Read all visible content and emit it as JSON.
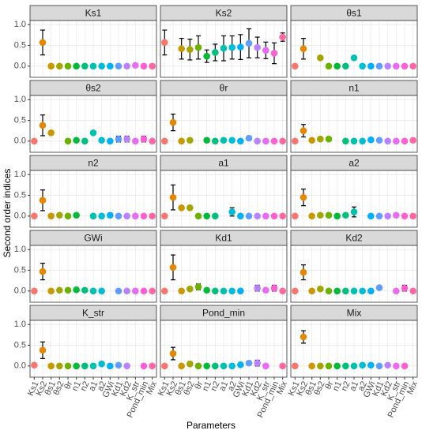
{
  "chart_data": {
    "type": "dot-errorbar",
    "xlabel": "Parameters",
    "ylabel": "Second order indices",
    "categories": [
      "Ks1",
      "Ks2",
      "θs1",
      "θs2",
      "θr",
      "n1",
      "n2",
      "a1",
      "a2",
      "GWi",
      "Kd1",
      "Kd2",
      "K_str",
      "Pond_min",
      "Mix"
    ],
    "colors": [
      "#F8766D",
      "#E58700",
      "#C99800",
      "#A3A500",
      "#6BB100",
      "#00BA38",
      "#00BF7D",
      "#00C0AF",
      "#00BCD8",
      "#00B0F6",
      "#619CFF",
      "#B983FF",
      "#E76BF3",
      "#FD61D1",
      "#FF67A4"
    ],
    "ylim": [
      -0.27,
      1.1
    ],
    "yticks": [
      {
        "value": 0,
        "label": "0.0"
      },
      {
        "value": 0.5,
        "label": "0.5"
      },
      {
        "value": 1,
        "label": "1.0"
      }
    ],
    "grid": true,
    "panels": [
      {
        "title": "Ks1",
        "values": [
          null,
          0.57,
          0,
          0,
          0,
          0,
          0,
          0,
          0,
          0,
          0,
          0,
          0.02,
          0,
          0
        ],
        "errors": [
          null,
          0.3,
          null,
          null,
          null,
          null,
          null,
          null,
          null,
          null,
          null,
          null,
          null,
          null,
          null
        ]
      },
      {
        "title": "Ks2",
        "values": [
          0.57,
          null,
          0.42,
          0.4,
          0.45,
          0.24,
          0.33,
          0.43,
          0.45,
          0.46,
          0.55,
          0.45,
          0.38,
          0.31,
          0.7
        ],
        "errors": [
          0.3,
          null,
          0.25,
          0.25,
          0.28,
          0.15,
          0.2,
          0.3,
          0.28,
          0.3,
          0.35,
          0.25,
          0.2,
          0.25,
          0.1
        ]
      },
      {
        "title": "θs1",
        "values": [
          0,
          0.42,
          null,
          0.2,
          0,
          0,
          0,
          0.2,
          0,
          0,
          0,
          0,
          0,
          0,
          0
        ],
        "errors": [
          null,
          0.25,
          null,
          null,
          null,
          null,
          null,
          null,
          null,
          null,
          null,
          null,
          null,
          null,
          null
        ]
      },
      {
        "title": "θs2",
        "values": [
          0,
          0.38,
          0.2,
          null,
          0,
          0.02,
          0,
          0.2,
          0.02,
          0,
          0.05,
          0.05,
          0,
          0.05,
          0
        ],
        "errors": [
          null,
          0.25,
          null,
          null,
          0.05,
          null,
          null,
          null,
          0.05,
          null,
          0.07,
          0.07,
          null,
          0.07,
          null
        ]
      },
      {
        "title": "θr",
        "values": [
          0,
          0.45,
          0,
          0.02,
          null,
          0.02,
          0,
          0.02,
          0.02,
          0,
          0.07,
          0,
          0,
          0,
          0
        ],
        "errors": [
          null,
          0.2,
          null,
          null,
          null,
          0.05,
          null,
          null,
          null,
          null,
          0.05,
          null,
          null,
          null,
          null
        ]
      },
      {
        "title": "n1",
        "values": [
          0,
          0.25,
          0.02,
          0.05,
          0.05,
          null,
          0,
          0,
          0,
          0.03,
          0.02,
          0,
          0,
          0,
          0.02
        ],
        "errors": [
          null,
          0.15,
          null,
          null,
          null,
          null,
          null,
          null,
          null,
          null,
          null,
          null,
          null,
          null,
          null
        ]
      },
      {
        "title": "n2",
        "values": [
          0,
          0.38,
          0,
          0.02,
          0,
          0.02,
          null,
          0,
          0,
          0.02,
          0,
          0,
          0,
          0,
          0
        ],
        "errors": [
          null,
          0.25,
          null,
          0.04,
          null,
          null,
          null,
          null,
          null,
          null,
          null,
          null,
          null,
          null,
          null
        ]
      },
      {
        "title": "a1",
        "values": [
          0,
          0.45,
          0.2,
          0.2,
          0,
          0,
          0,
          null,
          0.1,
          0,
          0,
          0,
          0,
          0,
          0
        ],
        "errors": [
          null,
          0.3,
          null,
          null,
          null,
          null,
          null,
          null,
          0.1,
          null,
          null,
          null,
          null,
          null,
          null
        ]
      },
      {
        "title": "a2",
        "values": [
          0,
          0.45,
          0,
          0.02,
          0.02,
          0,
          0.02,
          0.1,
          null,
          0,
          0,
          0,
          0.02,
          0,
          0
        ],
        "errors": [
          null,
          0.2,
          null,
          null,
          null,
          null,
          null,
          0.12,
          null,
          null,
          null,
          null,
          null,
          null,
          null
        ]
      },
      {
        "title": "GWi",
        "values": [
          0,
          0.47,
          0,
          0.02,
          0.02,
          0.03,
          0.02,
          0,
          0,
          null,
          0,
          0,
          0,
          0,
          0
        ],
        "errors": [
          null,
          0.2,
          null,
          null,
          null,
          null,
          null,
          null,
          null,
          null,
          null,
          null,
          null,
          null,
          null
        ]
      },
      {
        "title": "Kd1",
        "values": [
          0,
          0.57,
          0,
          0.05,
          0.1,
          0.02,
          0,
          0,
          0,
          0,
          null,
          0.07,
          0.02,
          0.07,
          0
        ],
        "errors": [
          null,
          0.3,
          null,
          null,
          0.07,
          null,
          null,
          null,
          null,
          null,
          null,
          0.07,
          null,
          0.07,
          null
        ]
      },
      {
        "title": "Kd2",
        "values": [
          0,
          0.45,
          0,
          0.05,
          0,
          0,
          0,
          0,
          0,
          0,
          0.08,
          null,
          0,
          0.07,
          0
        ],
        "errors": [
          null,
          0.18,
          null,
          0.05,
          null,
          null,
          null,
          null,
          null,
          null,
          0.05,
          null,
          null,
          0.07,
          null
        ]
      },
      {
        "title": "K_str",
        "values": [
          0.02,
          0.38,
          0,
          0,
          0,
          0,
          0,
          0,
          0.05,
          0,
          0.02,
          0,
          null,
          0,
          0
        ],
        "errors": [
          null,
          0.2,
          null,
          null,
          null,
          null,
          null,
          null,
          null,
          null,
          null,
          null,
          null,
          null,
          null
        ]
      },
      {
        "title": "Pond_min",
        "values": [
          0,
          0.3,
          0,
          0.05,
          0,
          0,
          0,
          0,
          0,
          0.03,
          0.07,
          0.07,
          0,
          null,
          0
        ],
        "errors": [
          null,
          0.15,
          null,
          0.05,
          null,
          null,
          null,
          null,
          null,
          null,
          0.05,
          0.07,
          null,
          null,
          null
        ]
      },
      {
        "title": "Mix",
        "values": [
          0,
          0.7,
          0,
          0,
          0,
          0,
          0,
          0,
          0.02,
          0.02,
          0,
          0.02,
          0,
          0,
          null
        ],
        "errors": [
          null,
          0.15,
          null,
          null,
          null,
          null,
          null,
          null,
          null,
          null,
          null,
          null,
          null,
          null,
          null
        ]
      }
    ]
  }
}
